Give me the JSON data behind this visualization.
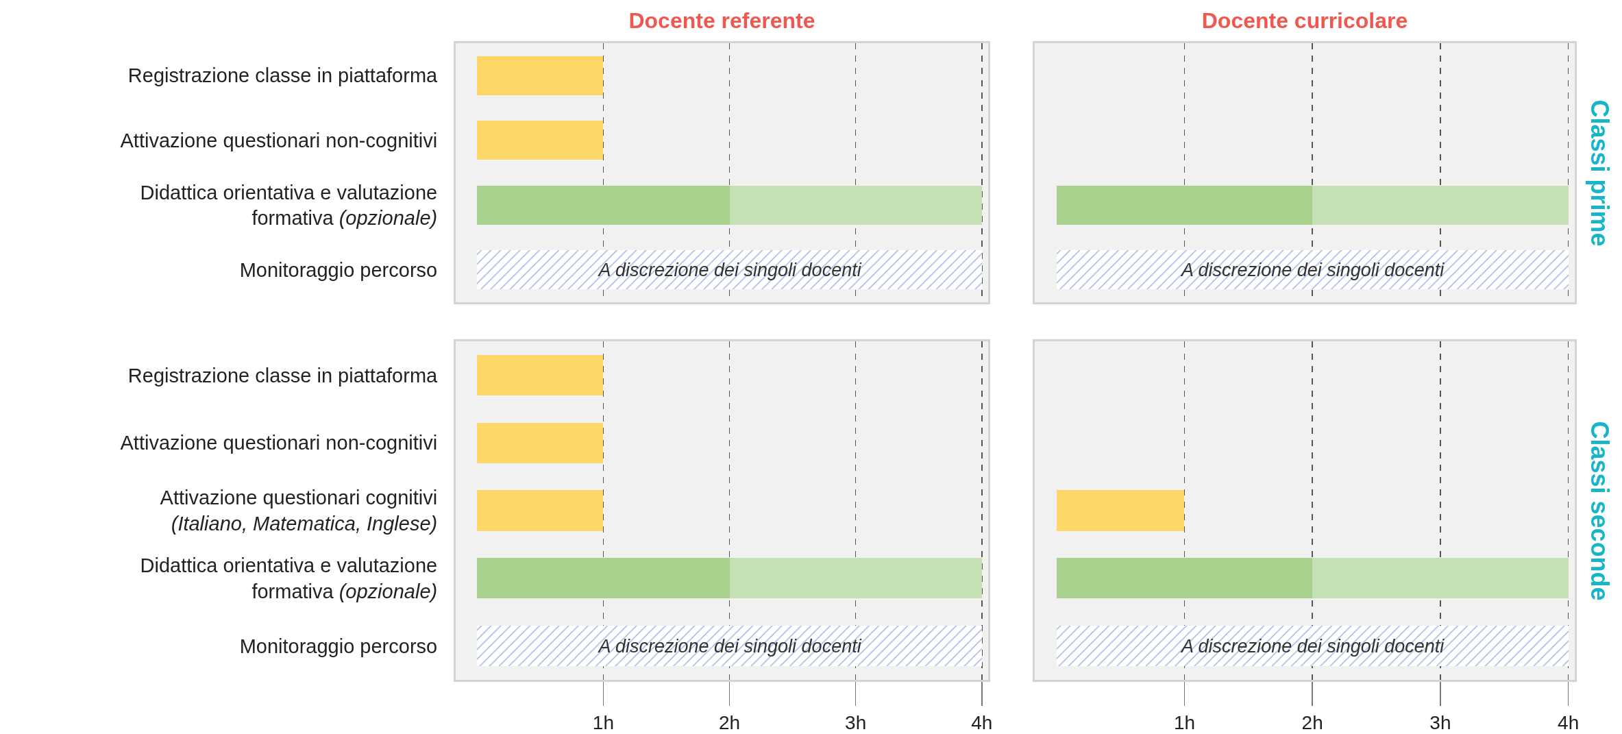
{
  "chart_data": [
    {
      "type": "bar",
      "title": "Docente referente",
      "orientation": "horizontal",
      "stacked": true,
      "grid": "x",
      "tick_labels": "y",
      "xlim": [
        -0.17,
        4.05
      ],
      "xticks": [
        {
          "value": 1,
          "label": null
        },
        {
          "value": 2,
          "label": null
        },
        {
          "value": 3,
          "label": null
        },
        {
          "value": 4,
          "label": null
        }
      ],
      "categories": [
        "Registrazione classe in piattaforma",
        "Attivazione questionari non-cognitivi",
        "Didattica orientativa e valutazione\nformativa (opzionale)",
        "Monitoraggio percorso"
      ],
      "series": [
        {
          "colors": [
            "#fdd868",
            "#fdd868",
            "#a9d18e",
            null
          ],
          "values": [
            1,
            1,
            2,
            null
          ]
        },
        {
          "color": "#c5e0b4",
          "values": [
            null,
            null,
            2,
            null
          ]
        },
        {
          "color": "#9fb3e0",
          "values": [
            null,
            null,
            null,
            4
          ],
          "value_labels": [
            null,
            null,
            null,
            "A discrezione dei singoli docenti"
          ]
        }
      ]
    },
    {
      "type": "bar",
      "title": "Docente curricolare",
      "annotations": [
        "Classi prime"
      ],
      "orientation": "horizontal",
      "stacked": true,
      "grid": "x",
      "tick_labels": false,
      "xlim": [
        -0.17,
        4.05
      ],
      "xticks": [
        {
          "value": 1,
          "label": null
        },
        {
          "value": 2,
          "label": null
        },
        {
          "value": 3,
          "label": null
        },
        {
          "value": 4,
          "label": null
        }
      ],
      "categories": [
        null,
        null,
        null,
        null
      ],
      "series": [
        {
          "colors": [
            null,
            null,
            "#a9d18e",
            null
          ],
          "values": [
            null,
            null,
            2,
            null
          ]
        },
        {
          "color": "#c5e0b4",
          "values": [
            null,
            null,
            2,
            null
          ]
        },
        {
          "color": "#9fb3e0",
          "values": [
            null,
            null,
            null,
            4
          ],
          "value_labels": [
            null,
            null,
            null,
            "A discrezione dei singoli docenti"
          ]
        }
      ]
    },
    {
      "type": "bar",
      "orientation": "horizontal",
      "stacked": true,
      "grid": "x",
      "xlim": [
        -0.17,
        4.05
      ],
      "xticks": [
        {
          "value": 1,
          "label": "1h"
        },
        {
          "value": 2,
          "label": "2h"
        },
        {
          "value": 3,
          "label": "3h"
        },
        {
          "value": 4,
          "label": "4h"
        }
      ],
      "categories": [
        "Registrazione classe in piattaforma",
        "Attivazione questionari non-cognitivi",
        "Attivazione questionari cognitivi\n(Italiano, Matematica, Inglese)",
        "Didattica orientativa e valutazione\nformativa (opzionale)",
        "Monitoraggio percorso"
      ],
      "series": [
        {
          "colors": [
            "#fdd868",
            "#fdd868",
            "#fdd868",
            "#a9d18e",
            null
          ],
          "values": [
            1,
            1,
            1,
            2,
            null
          ]
        },
        {
          "color": "#c5e0b4",
          "values": [
            null,
            null,
            null,
            2,
            null
          ]
        },
        {
          "color": "#9fb3e0",
          "values": [
            null,
            null,
            null,
            null,
            4
          ],
          "value_labels": [
            null,
            null,
            null,
            null,
            "A discrezione dei singoli docenti"
          ]
        }
      ]
    },
    {
      "type": "bar",
      "annotations": [
        "Classi seconde"
      ],
      "orientation": "horizontal",
      "stacked": true,
      "grid": "x",
      "tick_labels": "x",
      "xlim": [
        -0.17,
        4.05
      ],
      "xticks": [
        {
          "value": 1,
          "label": "1h"
        },
        {
          "value": 2,
          "label": "2h"
        },
        {
          "value": 3,
          "label": "3h"
        },
        {
          "value": 4,
          "label": "4h"
        }
      ],
      "categories": [
        null,
        null,
        null,
        null,
        null
      ],
      "series": [
        {
          "colors": [
            null,
            null,
            "#fdd868",
            "#a9d18e",
            null
          ],
          "values": [
            null,
            null,
            1,
            2,
            null
          ]
        },
        {
          "color": "#c5e0b4",
          "values": [
            null,
            null,
            null,
            2,
            null
          ]
        },
        {
          "color": "#9fb3e0",
          "values": [
            null,
            null,
            null,
            null,
            4
          ],
          "value_labels": [
            null,
            null,
            null,
            null,
            "A discrezione dei singoli docenti"
          ]
        }
      ]
    }
  ]
}
